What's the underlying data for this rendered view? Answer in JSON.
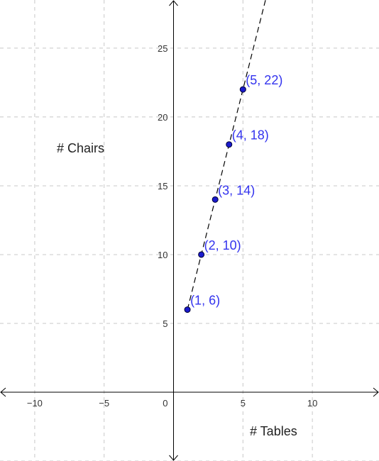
{
  "chart_data": {
    "type": "scatter",
    "xlabel": "# Tables",
    "ylabel": "# Chairs",
    "xlim": [
      -12.5,
      14.8
    ],
    "ylim": [
      -5,
      28.5
    ],
    "x_ticks": [
      -10,
      -5,
      5,
      10
    ],
    "x_tick_labels": [
      "−10",
      "−5",
      "5",
      "10"
    ],
    "y_ticks": [
      5,
      10,
      15,
      20,
      25
    ],
    "y_tick_labels": [
      "5",
      "10",
      "15",
      "20",
      "25"
    ],
    "origin_label": "0",
    "grid": true,
    "points": [
      {
        "x": 1,
        "y": 6,
        "label": "(1, 6)"
      },
      {
        "x": 2,
        "y": 10,
        "label": "(2, 10)"
      },
      {
        "x": 3,
        "y": 14,
        "label": "(3, 14)"
      },
      {
        "x": 4,
        "y": 18,
        "label": "(4, 18)"
      },
      {
        "x": 5,
        "y": 22,
        "label": "(5, 22)"
      }
    ],
    "trend_line": {
      "slope": 4,
      "intercept": 2,
      "x_from": 1,
      "style": "dashed"
    },
    "colors": {
      "point": "#1a1acc",
      "label": "#3333ee",
      "axis": "#000000",
      "grid": "#c8c8c8",
      "line": "#000000"
    }
  }
}
